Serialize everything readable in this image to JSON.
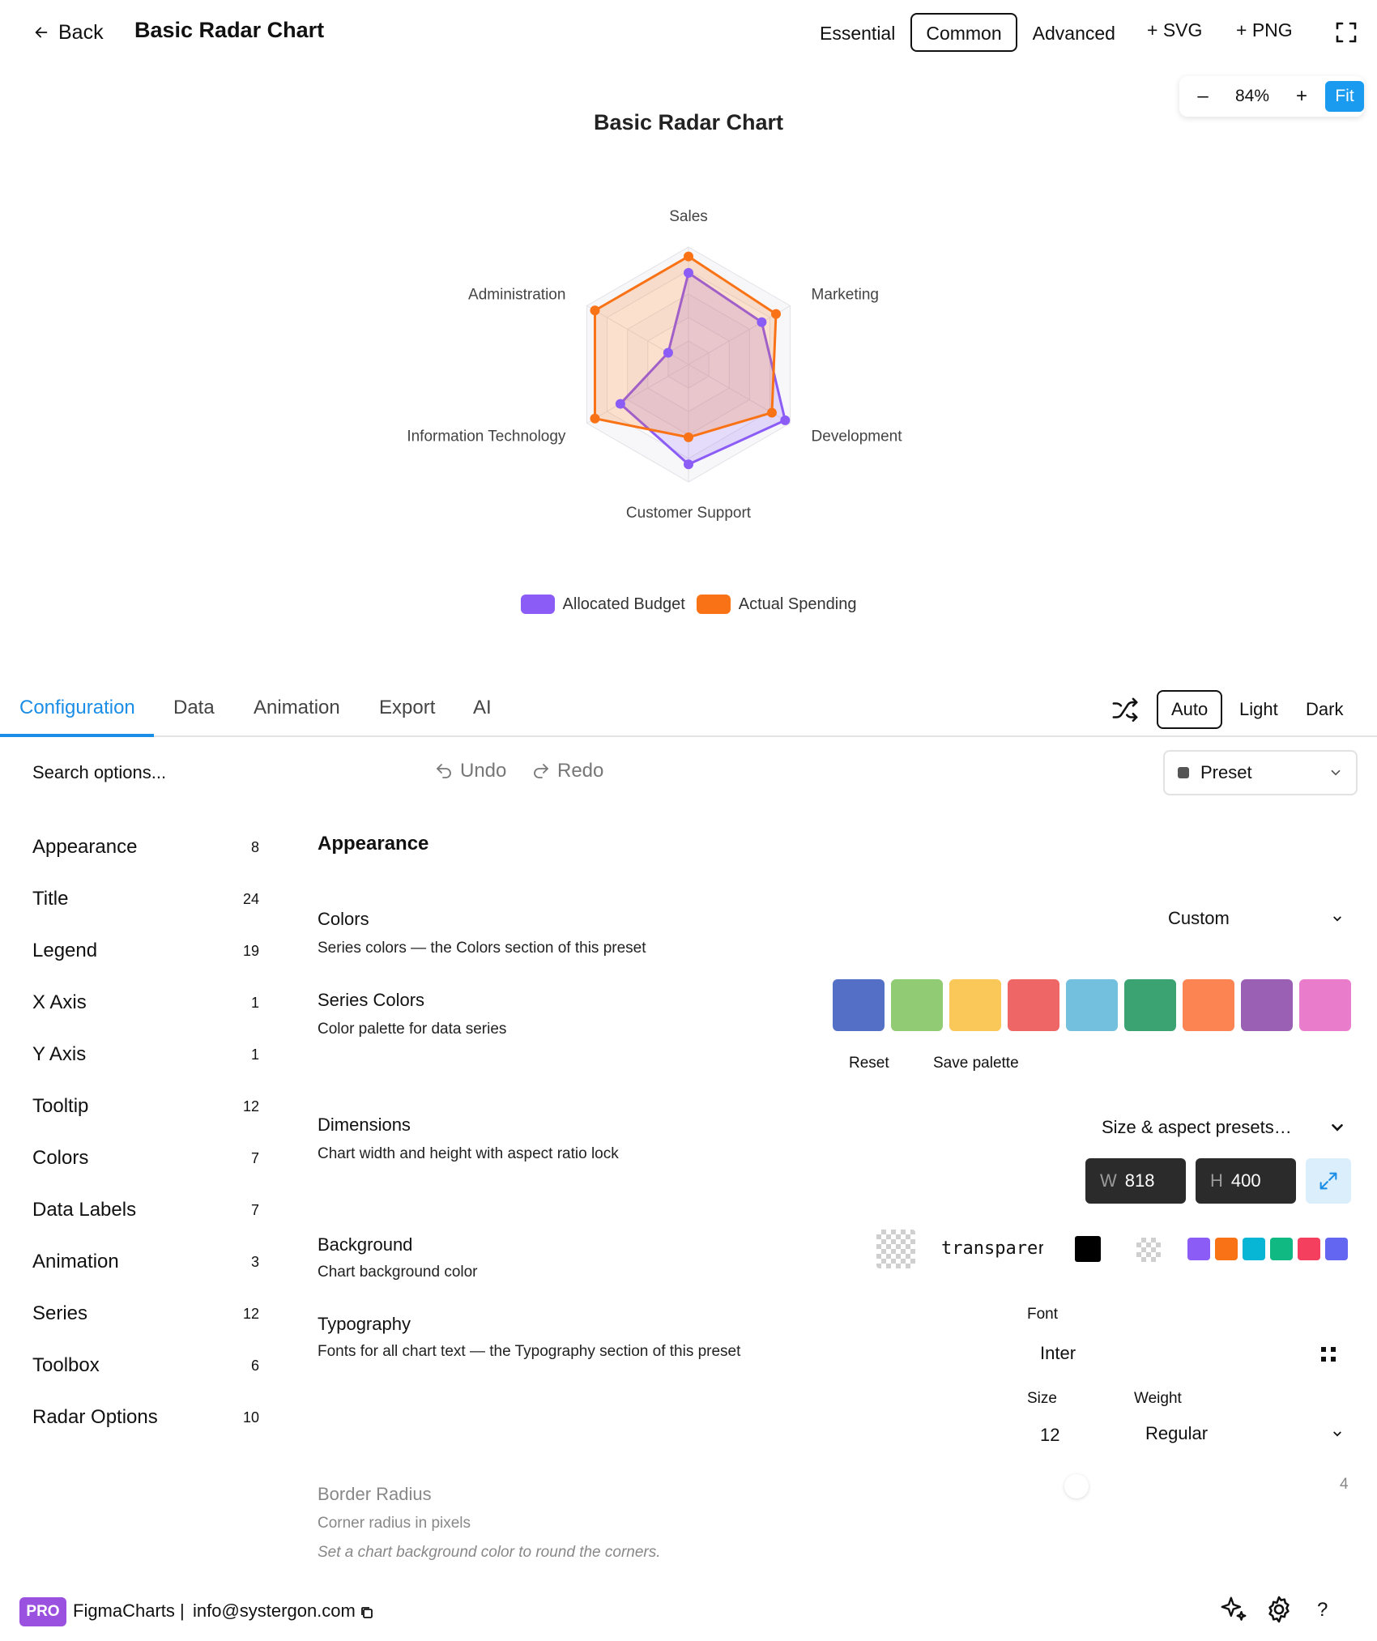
{
  "header": {
    "back_label": "Back",
    "title": "Basic Radar Chart",
    "mode_tabs": [
      {
        "label": "Essential",
        "active": false
      },
      {
        "label": "Common",
        "active": true
      },
      {
        "label": "Advanced",
        "active": false
      }
    ],
    "export_svg": "+ SVG",
    "export_png": "+ PNG"
  },
  "zoom": {
    "minus": "–",
    "value": "84%",
    "plus": "+",
    "fit": "Fit"
  },
  "chart_data": {
    "type": "radar",
    "title": "Basic Radar Chart",
    "indicators": [
      "Sales",
      "Marketing",
      "Development",
      "Customer Support",
      "Information Technology",
      "Administration"
    ],
    "max": 100,
    "series": [
      {
        "name": "Allocated Budget",
        "color": "#8b5cf6",
        "values": [
          78,
          72,
          95,
          85,
          67,
          20
        ]
      },
      {
        "name": "Actual Spending",
        "color": "#f97316",
        "values": [
          92,
          86,
          82,
          62,
          92,
          92
        ]
      }
    ],
    "legend_position": "bottom"
  },
  "config_tabs": [
    {
      "label": "Configuration",
      "active": true
    },
    {
      "label": "Data",
      "active": false
    },
    {
      "label": "Animation",
      "active": false
    },
    {
      "label": "Export",
      "active": false
    },
    {
      "label": "AI",
      "active": false
    }
  ],
  "theme": {
    "options": [
      {
        "label": "Auto",
        "active": true
      },
      {
        "label": "Light",
        "active": false
      },
      {
        "label": "Dark",
        "active": false
      }
    ]
  },
  "toolbar": {
    "search_placeholder": "Search options...",
    "undo": "Undo",
    "redo": "Redo",
    "preset": "Preset"
  },
  "sidebar": {
    "items": [
      {
        "label": "Appearance",
        "count": "8"
      },
      {
        "label": "Title",
        "count": "24"
      },
      {
        "label": "Legend",
        "count": "19"
      },
      {
        "label": "X Axis",
        "count": "1"
      },
      {
        "label": "Y Axis",
        "count": "1"
      },
      {
        "label": "Tooltip",
        "count": "12"
      },
      {
        "label": "Colors",
        "count": "7"
      },
      {
        "label": "Data Labels",
        "count": "7"
      },
      {
        "label": "Animation",
        "count": "3"
      },
      {
        "label": "Series",
        "count": "12"
      },
      {
        "label": "Toolbox",
        "count": "6"
      },
      {
        "label": "Radar Options",
        "count": "10"
      }
    ]
  },
  "appearance": {
    "heading": "Appearance",
    "colors": {
      "title": "Colors",
      "desc": "Series colors — the Colors section of this preset",
      "value": "Custom"
    },
    "series_colors": {
      "title": "Series Colors",
      "desc": "Color palette for data series",
      "palette": [
        "#5470c6",
        "#91cc75",
        "#fac858",
        "#ee6666",
        "#73c0de",
        "#3ba272",
        "#fc8452",
        "#9a60b4",
        "#ea7ccc"
      ],
      "reset": "Reset",
      "save": "Save palette"
    },
    "dimensions": {
      "title": "Dimensions",
      "desc": "Chart width and height with aspect ratio lock",
      "presets": "Size & aspect presets…",
      "w_prefix": "W",
      "width": "818",
      "h_prefix": "H",
      "height": "400"
    },
    "background": {
      "title": "Background",
      "desc": "Chart background color",
      "value": "transparent",
      "quick_colors": [
        "#8b5cf6",
        "#f97316",
        "#06b6d4",
        "#10b981",
        "#f43f5e",
        "#6366f1"
      ]
    },
    "typography": {
      "title": "Typography",
      "desc": "Fonts for all chart text — the Typography section of this preset",
      "font_label": "Font",
      "font_value": "Inter",
      "size_label": "Size",
      "size_value": "12",
      "weight_label": "Weight",
      "weight_value": "Regular"
    },
    "border_radius": {
      "title": "Border Radius",
      "desc": "Corner radius in pixels",
      "value": "4",
      "hint": "Set a chart background color to round the corners."
    }
  },
  "footer": {
    "badge": "PRO",
    "brand": "FigmaCharts",
    "separator": "|",
    "email": "info@systergon.com",
    "help": "?"
  }
}
